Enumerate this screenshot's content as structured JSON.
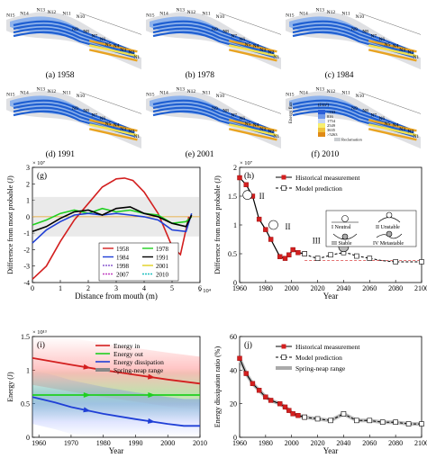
{
  "maps": {
    "panels": [
      {
        "label": "(a) 1958"
      },
      {
        "label": "(b) 1978"
      },
      {
        "label": "(c) 1984"
      },
      {
        "label": "(d) 1991"
      },
      {
        "label": "(e) 2001"
      },
      {
        "label": "(f) 2010"
      }
    ],
    "node_labels": [
      "N15",
      "N14",
      "N13",
      "N12",
      "N11",
      "N10",
      "N9",
      "N8",
      "N7",
      "N6",
      "N5",
      "N4",
      "N3",
      "N2",
      "N1"
    ],
    "legend": {
      "title": "Energy flux",
      "unit": "(J/m²)",
      "entries": [
        "<163",
        "816",
        "1754",
        "2549",
        "3635",
        ">5263"
      ],
      "reclamation": "Reclamation"
    }
  },
  "colors": {
    "water_blue": "#1f5fd1",
    "light_blue": "#8fb3ec",
    "orange": "#e8a321",
    "yellow": "#f5e14a",
    "grey_land": "#c9ccd0",
    "red": "#d31f1f",
    "green": "#1fcf1f",
    "blue": "#1f3fd6",
    "black": "#000000"
  },
  "chart_data": [
    {
      "panel": "(g)",
      "type": "line",
      "xlabel": "Distance from mouth (m)",
      "ylabel": "Difference from most probable (J)",
      "x_exponent": "× 10⁴",
      "y_exponent": "× 10⁷",
      "xlim": [
        0,
        6
      ],
      "ylim": [
        -4,
        3
      ],
      "xticks": [
        "0",
        "1",
        "2",
        "3",
        "4",
        "5",
        "6"
      ],
      "yticks": [
        "-4",
        "-3",
        "-2",
        "-1",
        "0",
        "1",
        "2",
        "3"
      ],
      "legend": [
        "1958",
        "1978",
        "1984",
        "1991",
        "1998",
        "2001",
        "2007",
        "2010"
      ],
      "series": [
        {
          "name": "1958",
          "color": "#d31f1f",
          "x": [
            0,
            0.5,
            1,
            1.5,
            2,
            2.5,
            3,
            3.3,
            3.6,
            4,
            4.5,
            5,
            5.3,
            5.6
          ],
          "y": [
            -3.8,
            -3.0,
            -1.5,
            -0.2,
            0.8,
            1.8,
            2.3,
            2.35,
            2.2,
            1.5,
            0.2,
            -1.8,
            -2.3,
            0
          ]
        },
        {
          "name": "1978",
          "color": "#1fcf1f",
          "x": [
            0,
            0.5,
            1,
            1.5,
            2,
            2.5,
            3,
            3.5,
            4,
            4.5,
            5,
            5.5,
            5.7
          ],
          "y": [
            -0.5,
            -0.2,
            0.2,
            0.4,
            0.2,
            0.5,
            0.3,
            0.4,
            0.2,
            0.1,
            -0.4,
            -0.3,
            0
          ]
        },
        {
          "name": "1984",
          "color": "#1f3fd6",
          "x": [
            0,
            0.5,
            1,
            1.5,
            2,
            2.5,
            3,
            3.5,
            4,
            4.5,
            5,
            5.5,
            5.7
          ],
          "y": [
            -1.6,
            -0.8,
            -0.3,
            0.1,
            0.2,
            0.1,
            0.2,
            0.1,
            0.0,
            -0.2,
            -0.8,
            -0.9,
            0.2
          ]
        },
        {
          "name": "1991",
          "color": "#000000",
          "x": [
            0,
            0.5,
            1,
            1.5,
            2,
            2.5,
            3,
            3.5,
            4,
            4.5,
            5,
            5.5,
            5.7
          ],
          "y": [
            -0.9,
            -0.6,
            -0.1,
            0.3,
            0.4,
            0.1,
            0.5,
            0.6,
            0.2,
            0.0,
            -0.4,
            -0.6,
            0.1
          ]
        }
      ]
    },
    {
      "panel": "(h)",
      "type": "line",
      "xlabel": "Year",
      "ylabel": "Difference from most probable (J)",
      "y_exponent": "× 10⁷",
      "xlim": [
        1960,
        2100
      ],
      "ylim": [
        0,
        2
      ],
      "xticks": [
        "1960",
        "1980",
        "2000",
        "2020",
        "2040",
        "2060",
        "2080",
        "2100"
      ],
      "yticks": [
        "0",
        "0.5",
        "1",
        "1.5",
        "2"
      ],
      "legend": [
        "Historical measurement",
        "Model prediction"
      ],
      "stability_legend": [
        "I Neutral",
        "II Unstable",
        "III Stable",
        "IV Metastable"
      ],
      "stage_labels": [
        "II",
        "II",
        "III",
        "IV"
      ],
      "series": [
        {
          "name": "Historical measurement",
          "color": "#d31f1f",
          "x": [
            1960,
            1965,
            1970,
            1975,
            1980,
            1984,
            1991,
            1995,
            1998,
            2001,
            2005,
            2010
          ],
          "y": [
            1.82,
            1.7,
            1.5,
            1.1,
            0.92,
            0.75,
            0.45,
            0.42,
            0.48,
            0.57,
            0.52,
            0.5
          ]
        },
        {
          "name": "Model prediction",
          "color": "#000000",
          "x": [
            2010,
            2015,
            2020,
            2025,
            2030,
            2035,
            2040,
            2045,
            2050,
            2055,
            2060,
            2070,
            2080,
            2090,
            2100
          ],
          "y": [
            0.5,
            0.45,
            0.42,
            0.44,
            0.48,
            0.5,
            0.52,
            0.5,
            0.46,
            0.44,
            0.42,
            0.38,
            0.36,
            0.36,
            0.36
          ]
        }
      ]
    },
    {
      "panel": "(i)",
      "type": "line",
      "xlabel": "Year",
      "ylabel": "Energy (J)",
      "y_exponent": "× 10¹³",
      "xlim": [
        1958,
        2010
      ],
      "ylim": [
        0,
        1.5
      ],
      "xticks": [
        "1960",
        "1970",
        "1980",
        "1990",
        "2000",
        "2010"
      ],
      "yticks": [
        "0",
        "0.5",
        "1",
        "1.5"
      ],
      "legend": [
        "Energy in",
        "Energy out",
        "Energy dissipation",
        "Spring-neap range"
      ],
      "series": [
        {
          "name": "Energy in",
          "color": "#d31f1f",
          "x": [
            1958,
            1970,
            1980,
            1990,
            2000,
            2010
          ],
          "y": [
            1.18,
            1.08,
            1.0,
            0.93,
            0.86,
            0.8
          ]
        },
        {
          "name": "Energy out",
          "color": "#1fcf1f",
          "x": [
            1958,
            1970,
            1980,
            1990,
            2000,
            2010
          ],
          "y": [
            0.63,
            0.63,
            0.63,
            0.63,
            0.63,
            0.63
          ]
        },
        {
          "name": "Energy dissipation",
          "color": "#1f3fd6",
          "x": [
            1958,
            1965,
            1970,
            1980,
            1990,
            2000,
            2005,
            2010
          ],
          "y": [
            0.6,
            0.52,
            0.45,
            0.35,
            0.27,
            0.2,
            0.17,
            0.17
          ]
        }
      ]
    },
    {
      "panel": "(j)",
      "type": "line",
      "xlabel": "Year",
      "ylabel": "Energy dissipation ratio (%)",
      "xlim": [
        1960,
        2100
      ],
      "ylim": [
        0,
        60
      ],
      "xticks": [
        "1960",
        "1980",
        "2000",
        "2020",
        "2040",
        "2060",
        "2080",
        "2100"
      ],
      "yticks": [
        "0",
        "20",
        "40",
        "60"
      ],
      "legend": [
        "Historical measurement",
        "Model prediction",
        "Spring-neap range"
      ],
      "series": [
        {
          "name": "Historical measurement",
          "color": "#d31f1f",
          "x": [
            1960,
            1965,
            1970,
            1975,
            1980,
            1984,
            1991,
            1995,
            1998,
            2001,
            2005,
            2010
          ],
          "y": [
            47,
            38,
            32,
            28,
            24,
            22,
            20,
            18,
            16,
            14,
            13,
            12
          ]
        },
        {
          "name": "Model prediction",
          "color": "#000000",
          "x": [
            2010,
            2020,
            2030,
            2040,
            2050,
            2060,
            2070,
            2080,
            2090,
            2100
          ],
          "y": [
            12,
            11,
            10,
            14,
            10,
            10,
            9,
            9,
            8,
            8
          ]
        }
      ]
    }
  ]
}
